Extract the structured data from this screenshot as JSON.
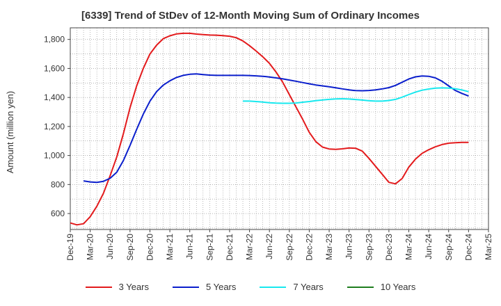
{
  "title": "[6339]  Trend of StDev of 12-Month Moving Sum of Ordinary Incomes",
  "chart_data": {
    "type": "line",
    "title": "[6339]  Trend of StDev of 12-Month Moving Sum of Ordinary Incomes",
    "xlabel": "",
    "ylabel": "Amount (million yen)",
    "xlim": [
      "2019-12",
      "2025-03"
    ],
    "ylim": [
      490,
      1880
    ],
    "y_ticks": [
      600,
      800,
      1000,
      1200,
      1400,
      1600,
      1800
    ],
    "y_tick_labels": [
      "600",
      "800",
      "1,000",
      "1,200",
      "1,400",
      "1,600",
      "1,800"
    ],
    "x_ticks": [
      "2019-12",
      "2020-03",
      "2020-06",
      "2020-09",
      "2020-12",
      "2021-03",
      "2021-06",
      "2021-09",
      "2021-12",
      "2022-03",
      "2022-06",
      "2022-09",
      "2022-12",
      "2023-03",
      "2023-06",
      "2023-09",
      "2023-12",
      "2024-03",
      "2024-06",
      "2024-09",
      "2024-12",
      "2025-03"
    ],
    "x_tick_labels": [
      "Dec-19",
      "Mar-20",
      "Jun-20",
      "Sep-20",
      "Dec-20",
      "Mar-21",
      "Jun-21",
      "Sep-21",
      "Dec-21",
      "Mar-22",
      "Jun-22",
      "Sep-22",
      "Dec-22",
      "Mar-23",
      "Jun-23",
      "Sep-23",
      "Dec-23",
      "Mar-24",
      "Jun-24",
      "Sep-24",
      "Dec-24",
      "Mar-25"
    ],
    "grid": true,
    "legend_position": "bottom",
    "series": [
      {
        "name": "3 Years",
        "color": "#e31a1c",
        "points": [
          [
            "2019-12",
            535
          ],
          [
            "2020-01",
            522
          ],
          [
            "2020-02",
            530
          ],
          [
            "2020-03",
            578
          ],
          [
            "2020-04",
            650
          ],
          [
            "2020-05",
            740
          ],
          [
            "2020-06",
            860
          ],
          [
            "2020-07",
            990
          ],
          [
            "2020-08",
            1150
          ],
          [
            "2020-09",
            1330
          ],
          [
            "2020-10",
            1480
          ],
          [
            "2020-11",
            1600
          ],
          [
            "2020-12",
            1700
          ],
          [
            "2021-01",
            1760
          ],
          [
            "2021-02",
            1805
          ],
          [
            "2021-03",
            1825
          ],
          [
            "2021-04",
            1838
          ],
          [
            "2021-05",
            1842
          ],
          [
            "2021-06",
            1842
          ],
          [
            "2021-07",
            1837
          ],
          [
            "2021-08",
            1833
          ],
          [
            "2021-09",
            1830
          ],
          [
            "2021-10",
            1829
          ],
          [
            "2021-11",
            1826
          ],
          [
            "2021-12",
            1822
          ],
          [
            "2022-01",
            1812
          ],
          [
            "2022-02",
            1790
          ],
          [
            "2022-03",
            1757
          ],
          [
            "2022-04",
            1720
          ],
          [
            "2022-05",
            1680
          ],
          [
            "2022-06",
            1635
          ],
          [
            "2022-07",
            1575
          ],
          [
            "2022-08",
            1505
          ],
          [
            "2022-09",
            1420
          ],
          [
            "2022-10",
            1335
          ],
          [
            "2022-11",
            1250
          ],
          [
            "2022-12",
            1160
          ],
          [
            "2023-01",
            1095
          ],
          [
            "2023-02",
            1058
          ],
          [
            "2023-03",
            1045
          ],
          [
            "2023-04",
            1042
          ],
          [
            "2023-05",
            1046
          ],
          [
            "2023-06",
            1052
          ],
          [
            "2023-07",
            1050
          ],
          [
            "2023-08",
            1030
          ],
          [
            "2023-09",
            980
          ],
          [
            "2023-10",
            925
          ],
          [
            "2023-11",
            870
          ],
          [
            "2023-12",
            815
          ],
          [
            "2024-01",
            805
          ],
          [
            "2024-02",
            842
          ],
          [
            "2024-03",
            920
          ],
          [
            "2024-04",
            975
          ],
          [
            "2024-05",
            1015
          ],
          [
            "2024-06",
            1040
          ],
          [
            "2024-07",
            1060
          ],
          [
            "2024-08",
            1075
          ],
          [
            "2024-09",
            1085
          ],
          [
            "2024-10",
            1088
          ],
          [
            "2024-11",
            1090
          ],
          [
            "2024-12",
            1090
          ]
        ]
      },
      {
        "name": "5 Years",
        "color": "#0a1ecc",
        "points": [
          [
            "2020-02",
            825
          ],
          [
            "2020-03",
            818
          ],
          [
            "2020-04",
            815
          ],
          [
            "2020-05",
            822
          ],
          [
            "2020-06",
            843
          ],
          [
            "2020-07",
            885
          ],
          [
            "2020-08",
            965
          ],
          [
            "2020-09",
            1070
          ],
          [
            "2020-10",
            1180
          ],
          [
            "2020-11",
            1285
          ],
          [
            "2020-12",
            1375
          ],
          [
            "2021-01",
            1440
          ],
          [
            "2021-02",
            1485
          ],
          [
            "2021-03",
            1515
          ],
          [
            "2021-04",
            1538
          ],
          [
            "2021-05",
            1552
          ],
          [
            "2021-06",
            1560
          ],
          [
            "2021-07",
            1562
          ],
          [
            "2021-08",
            1558
          ],
          [
            "2021-09",
            1554
          ],
          [
            "2021-10",
            1552
          ],
          [
            "2021-11",
            1552
          ],
          [
            "2021-12",
            1552
          ],
          [
            "2022-01",
            1552
          ],
          [
            "2022-02",
            1552
          ],
          [
            "2022-03",
            1551
          ],
          [
            "2022-04",
            1549
          ],
          [
            "2022-05",
            1546
          ],
          [
            "2022-06",
            1541
          ],
          [
            "2022-07",
            1535
          ],
          [
            "2022-08",
            1528
          ],
          [
            "2022-09",
            1520
          ],
          [
            "2022-10",
            1512
          ],
          [
            "2022-11",
            1503
          ],
          [
            "2022-12",
            1494
          ],
          [
            "2023-01",
            1486
          ],
          [
            "2023-02",
            1480
          ],
          [
            "2023-03",
            1474
          ],
          [
            "2023-04",
            1467
          ],
          [
            "2023-05",
            1459
          ],
          [
            "2023-06",
            1452
          ],
          [
            "2023-07",
            1447
          ],
          [
            "2023-08",
            1446
          ],
          [
            "2023-09",
            1448
          ],
          [
            "2023-10",
            1452
          ],
          [
            "2023-11",
            1459
          ],
          [
            "2023-12",
            1468
          ],
          [
            "2024-01",
            1483
          ],
          [
            "2024-02",
            1505
          ],
          [
            "2024-03",
            1527
          ],
          [
            "2024-04",
            1542
          ],
          [
            "2024-05",
            1548
          ],
          [
            "2024-06",
            1546
          ],
          [
            "2024-07",
            1535
          ],
          [
            "2024-08",
            1512
          ],
          [
            "2024-09",
            1480
          ],
          [
            "2024-10",
            1448
          ],
          [
            "2024-11",
            1428
          ],
          [
            "2024-12",
            1410
          ]
        ]
      },
      {
        "name": "7 Years",
        "color": "#17e8ee",
        "points": [
          [
            "2022-02",
            1375
          ],
          [
            "2022-03",
            1375
          ],
          [
            "2022-04",
            1372
          ],
          [
            "2022-05",
            1368
          ],
          [
            "2022-06",
            1364
          ],
          [
            "2022-07",
            1361
          ],
          [
            "2022-08",
            1360
          ],
          [
            "2022-09",
            1360
          ],
          [
            "2022-10",
            1362
          ],
          [
            "2022-11",
            1367
          ],
          [
            "2022-12",
            1372
          ],
          [
            "2023-01",
            1378
          ],
          [
            "2023-02",
            1383
          ],
          [
            "2023-03",
            1387
          ],
          [
            "2023-04",
            1390
          ],
          [
            "2023-05",
            1391
          ],
          [
            "2023-06",
            1389
          ],
          [
            "2023-07",
            1386
          ],
          [
            "2023-08",
            1382
          ],
          [
            "2023-09",
            1377
          ],
          [
            "2023-10",
            1375
          ],
          [
            "2023-11",
            1375
          ],
          [
            "2023-12",
            1379
          ],
          [
            "2024-01",
            1387
          ],
          [
            "2024-02",
            1402
          ],
          [
            "2024-03",
            1420
          ],
          [
            "2024-04",
            1437
          ],
          [
            "2024-05",
            1450
          ],
          [
            "2024-06",
            1458
          ],
          [
            "2024-07",
            1464
          ],
          [
            "2024-08",
            1466
          ],
          [
            "2024-09",
            1465
          ],
          [
            "2024-10",
            1460
          ],
          [
            "2024-11",
            1452
          ],
          [
            "2024-12",
            1440
          ]
        ]
      },
      {
        "name": "10 Years",
        "color": "#1e7d1e",
        "points": []
      }
    ]
  }
}
